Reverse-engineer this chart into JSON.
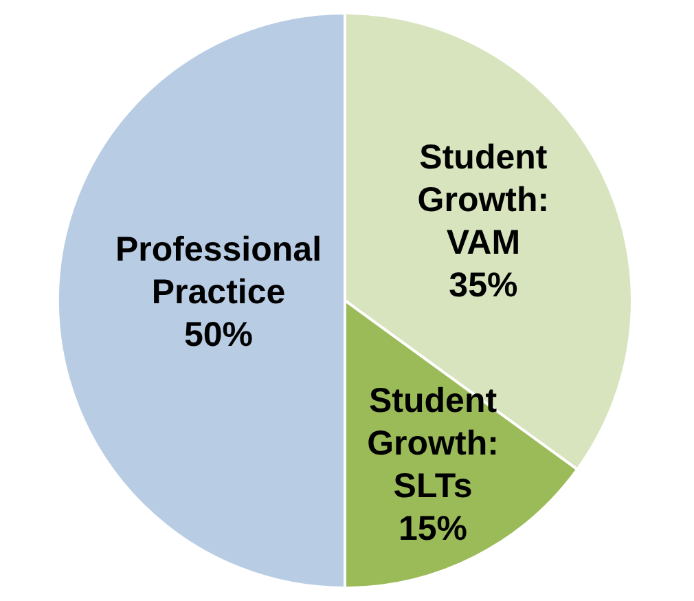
{
  "chart_data": {
    "type": "pie",
    "categories": [
      "Student Growth: VAM",
      "Student Growth: SLTs",
      "Professional Practice"
    ],
    "values": [
      35,
      15,
      50
    ],
    "colors": [
      "#d7e4bd",
      "#9bbb59",
      "#b8cce4"
    ],
    "value_labels": [
      "35%",
      "15%",
      "50%"
    ]
  }
}
